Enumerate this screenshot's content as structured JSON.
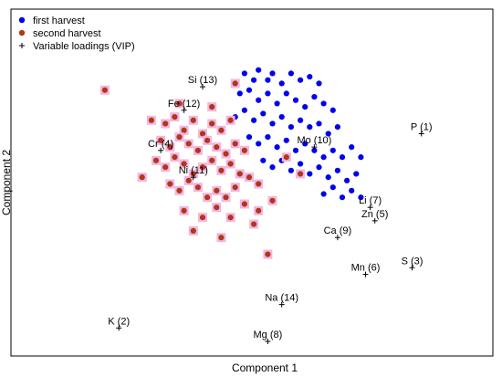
{
  "chart_data": {
    "type": "scatter",
    "xlabel": "Component 1",
    "ylabel": "Component 2",
    "xlim": [
      0,
      100
    ],
    "ylim": [
      0,
      100
    ],
    "grid": false,
    "legend_position": "top-left",
    "legend": [
      {
        "label": "first harvest",
        "marker": "dot",
        "color": "#0000ee"
      },
      {
        "label": "second harvest",
        "marker": "dot",
        "color": "#b2361a"
      },
      {
        "label": "Variable loadings (VIP)",
        "marker": "plus",
        "color": "#000000"
      }
    ],
    "series": [
      {
        "name": "first harvest",
        "color": "#0000ee",
        "points": [
          [
            49,
            83
          ],
          [
            51,
            81
          ],
          [
            52,
            84
          ],
          [
            54,
            81
          ],
          [
            55,
            83
          ],
          [
            57,
            80
          ],
          [
            59,
            83
          ],
          [
            61,
            81
          ],
          [
            63,
            82
          ],
          [
            65,
            80
          ],
          [
            48,
            77
          ],
          [
            50,
            78
          ],
          [
            52,
            75
          ],
          [
            54,
            77
          ],
          [
            56,
            74
          ],
          [
            58,
            77
          ],
          [
            60,
            75
          ],
          [
            62,
            73
          ],
          [
            64,
            76
          ],
          [
            66,
            74
          ],
          [
            68,
            72
          ],
          [
            47,
            70
          ],
          [
            49,
            72
          ],
          [
            51,
            69
          ],
          [
            53,
            71
          ],
          [
            55,
            68
          ],
          [
            57,
            70
          ],
          [
            59,
            67
          ],
          [
            61,
            69
          ],
          [
            63,
            67
          ],
          [
            65,
            68
          ],
          [
            67,
            65
          ],
          [
            69,
            67
          ],
          [
            50,
            64
          ],
          [
            52,
            62
          ],
          [
            54,
            64
          ],
          [
            56,
            61
          ],
          [
            58,
            63
          ],
          [
            60,
            60
          ],
          [
            62,
            62
          ],
          [
            64,
            60
          ],
          [
            66,
            58
          ],
          [
            68,
            60
          ],
          [
            70,
            58
          ],
          [
            72,
            61
          ],
          [
            74,
            58
          ],
          [
            53,
            57
          ],
          [
            55,
            55
          ],
          [
            57,
            57
          ],
          [
            59,
            54
          ],
          [
            61,
            56
          ],
          [
            63,
            53
          ],
          [
            65,
            55
          ],
          [
            67,
            52
          ],
          [
            69,
            54
          ],
          [
            71,
            51
          ],
          [
            73,
            53
          ],
          [
            66,
            47
          ],
          [
            68,
            49
          ],
          [
            70,
            46
          ],
          [
            72,
            48
          ],
          [
            74,
            46
          ]
        ]
      },
      {
        "name": "second harvest",
        "color": "#b2361a",
        "highlight": "#f0b6e0",
        "points": [
          [
            19,
            78
          ],
          [
            29,
            69
          ],
          [
            32,
            68
          ],
          [
            34,
            70
          ],
          [
            36,
            66
          ],
          [
            38,
            69
          ],
          [
            40,
            65
          ],
          [
            42,
            68
          ],
          [
            44,
            66
          ],
          [
            46,
            69
          ],
          [
            31,
            63
          ],
          [
            33,
            61
          ],
          [
            35,
            64
          ],
          [
            37,
            62
          ],
          [
            39,
            60
          ],
          [
            41,
            63
          ],
          [
            43,
            61
          ],
          [
            45,
            59
          ],
          [
            47,
            62
          ],
          [
            49,
            60
          ],
          [
            30,
            57
          ],
          [
            32,
            55
          ],
          [
            34,
            58
          ],
          [
            36,
            56
          ],
          [
            38,
            53
          ],
          [
            40,
            55
          ],
          [
            42,
            57
          ],
          [
            44,
            54
          ],
          [
            46,
            56
          ],
          [
            48,
            53
          ],
          [
            33,
            50
          ],
          [
            35,
            48
          ],
          [
            37,
            51
          ],
          [
            39,
            49
          ],
          [
            41,
            46
          ],
          [
            43,
            48
          ],
          [
            45,
            46
          ],
          [
            47,
            49
          ],
          [
            50,
            52
          ],
          [
            52,
            50
          ],
          [
            36,
            42
          ],
          [
            40,
            40
          ],
          [
            43,
            43
          ],
          [
            46,
            40
          ],
          [
            49,
            44
          ],
          [
            52,
            42
          ],
          [
            55,
            45
          ],
          [
            38,
            36
          ],
          [
            44,
            34
          ],
          [
            51,
            38
          ],
          [
            58,
            58
          ],
          [
            61,
            53
          ],
          [
            35,
            74
          ],
          [
            42,
            73
          ],
          [
            47,
            80
          ],
          [
            27,
            52
          ],
          [
            54,
            29
          ]
        ]
      }
    ],
    "variable_loadings": [
      {
        "label": "Si (13)",
        "x": 40,
        "y": 79
      },
      {
        "label": "Fe (12)",
        "x": 36,
        "y": 72
      },
      {
        "label": "Cr (4)",
        "x": 31,
        "y": 60
      },
      {
        "label": "Ni (11)",
        "x": 38,
        "y": 52
      },
      {
        "label": "Mo (10)",
        "x": 64,
        "y": 61
      },
      {
        "label": "P (1)",
        "x": 87,
        "y": 65
      },
      {
        "label": "Li (7)",
        "x": 76,
        "y": 43
      },
      {
        "label": "Zn (5)",
        "x": 77,
        "y": 39
      },
      {
        "label": "Ca (9)",
        "x": 69,
        "y": 34
      },
      {
        "label": "Mn (6)",
        "x": 75,
        "y": 23
      },
      {
        "label": "S (3)",
        "x": 85,
        "y": 25
      },
      {
        "label": "Na (14)",
        "x": 57,
        "y": 14
      },
      {
        "label": "K (2)",
        "x": 22,
        "y": 7
      },
      {
        "label": "Mg (8)",
        "x": 54,
        "y": 3
      }
    ]
  }
}
